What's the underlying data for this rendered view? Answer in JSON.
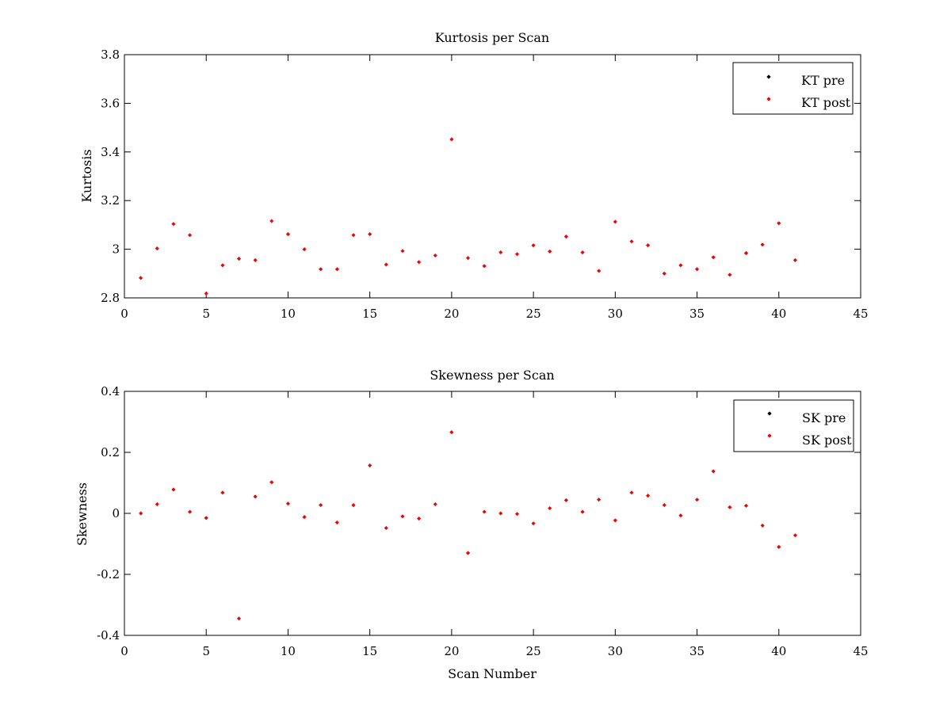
{
  "chart_data": [
    {
      "type": "scatter",
      "title": "Kurtosis per Scan",
      "xlabel": "",
      "ylabel": "Kurtosis",
      "xlim": [
        0,
        45
      ],
      "ylim": [
        2.8,
        3.8
      ],
      "xticks": [
        "0",
        "5",
        "10",
        "15",
        "20",
        "25",
        "30",
        "35",
        "40",
        "45"
      ],
      "yticks": [
        "2.8",
        "3",
        "3.2",
        "3.4",
        "3.6",
        "3.8"
      ],
      "grid": false,
      "legend_position": "top-right",
      "x": [
        1,
        2,
        3,
        4,
        5,
        6,
        7,
        8,
        9,
        10,
        11,
        12,
        13,
        14,
        15,
        16,
        17,
        18,
        19,
        20,
        21,
        22,
        23,
        24,
        25,
        26,
        27,
        28,
        29,
        30,
        31,
        32,
        33,
        34,
        35,
        36,
        37,
        38,
        39,
        40,
        41
      ],
      "series": [
        {
          "name": "KT pre",
          "color": "#000000",
          "values": [
            2.882,
            3.003,
            3.104,
            3.058,
            2.818,
            2.934,
            2.961,
            2.955,
            3.116,
            3.062,
            3.0,
            2.918,
            2.918,
            3.058,
            3.062,
            2.937,
            2.993,
            2.947,
            2.974,
            3.452,
            2.964,
            2.931,
            2.987,
            2.98,
            3.016,
            2.991,
            3.052,
            2.987,
            2.911,
            3.113,
            3.032,
            3.016,
            2.9,
            2.934,
            2.918,
            2.967,
            2.895,
            2.984,
            3.019,
            3.107,
            2.955
          ]
        },
        {
          "name": "KT post",
          "color": "#ff0000",
          "values": [
            2.882,
            3.003,
            3.104,
            3.058,
            2.818,
            2.934,
            2.961,
            2.955,
            3.116,
            3.062,
            3.0,
            2.918,
            2.918,
            3.058,
            3.062,
            2.937,
            2.993,
            2.947,
            2.974,
            3.452,
            2.964,
            2.931,
            2.987,
            2.98,
            3.016,
            2.991,
            3.052,
            2.987,
            2.911,
            3.113,
            3.032,
            3.016,
            2.9,
            2.934,
            2.918,
            2.967,
            2.895,
            2.984,
            3.019,
            3.107,
            2.955
          ]
        }
      ]
    },
    {
      "type": "scatter",
      "title": "Skewness per Scan",
      "xlabel": "Scan Number",
      "ylabel": "Skewness",
      "xlim": [
        0,
        45
      ],
      "ylim": [
        -0.4,
        0.4
      ],
      "xticks": [
        "0",
        "5",
        "10",
        "15",
        "20",
        "25",
        "30",
        "35",
        "40",
        "45"
      ],
      "yticks": [
        "-0.4",
        "-0.2",
        "0",
        "0.2",
        "0.4"
      ],
      "grid": false,
      "legend_position": "top-right",
      "x": [
        1,
        2,
        3,
        4,
        5,
        6,
        7,
        8,
        9,
        10,
        11,
        12,
        13,
        14,
        15,
        16,
        17,
        18,
        19,
        20,
        21,
        22,
        23,
        24,
        25,
        26,
        27,
        28,
        29,
        30,
        31,
        32,
        33,
        34,
        35,
        36,
        37,
        38,
        39,
        40,
        41
      ],
      "series": [
        {
          "name": "SK pre",
          "color": "#000000",
          "values": [
            0.0,
            0.03,
            0.078,
            0.005,
            -0.015,
            0.068,
            -0.345,
            0.055,
            0.102,
            0.032,
            -0.012,
            0.027,
            -0.03,
            0.027,
            0.157,
            -0.048,
            -0.01,
            -0.017,
            0.03,
            0.266,
            -0.13,
            0.005,
            0.0,
            -0.002,
            -0.033,
            0.017,
            0.043,
            0.005,
            0.045,
            -0.023,
            0.068,
            0.058,
            0.027,
            -0.007,
            0.045,
            0.138,
            0.02,
            0.025,
            -0.04,
            -0.11,
            -0.072
          ]
        },
        {
          "name": "SK post",
          "color": "#ff0000",
          "values": [
            0.0,
            0.03,
            0.078,
            0.005,
            -0.015,
            0.068,
            -0.345,
            0.055,
            0.102,
            0.032,
            -0.012,
            0.027,
            -0.03,
            0.027,
            0.157,
            -0.048,
            -0.01,
            -0.017,
            0.03,
            0.266,
            -0.13,
            0.005,
            0.0,
            -0.002,
            -0.033,
            0.017,
            0.043,
            0.005,
            0.045,
            -0.023,
            0.068,
            0.058,
            0.027,
            -0.007,
            0.045,
            0.138,
            0.02,
            0.025,
            -0.04,
            -0.11,
            -0.072
          ]
        }
      ]
    }
  ]
}
